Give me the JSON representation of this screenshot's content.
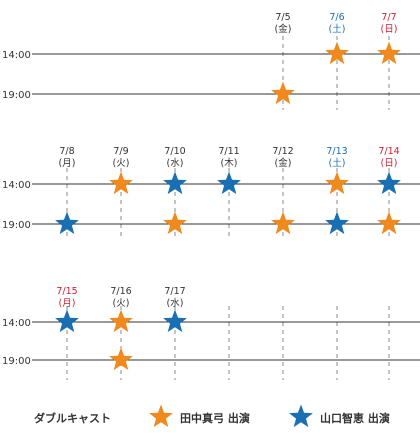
{
  "colors": {
    "orange": "#f08a1e",
    "blue": "#1a6fb3",
    "saturday": "#1a6fb3",
    "sunday": "#cc2233",
    "weekday": "#333333",
    "line": "#333333",
    "dash": "#888888"
  },
  "weeks": [
    {
      "times": [
        "14:00",
        "19:00"
      ],
      "days": [
        {
          "date": "7/5",
          "dow": "(金)",
          "type": "weekday",
          "shows": [
            "",
            "orange"
          ]
        },
        {
          "date": "7/6",
          "dow": "(土)",
          "type": "saturday",
          "shows": [
            "orange",
            ""
          ]
        },
        {
          "date": "7/7",
          "dow": "(日)",
          "type": "sunday",
          "shows": [
            "orange",
            ""
          ]
        }
      ],
      "start_col": 4
    },
    {
      "times": [
        "14:00",
        "19:00"
      ],
      "days": [
        {
          "date": "7/8",
          "dow": "(月)",
          "type": "weekday",
          "shows": [
            "",
            "blue"
          ]
        },
        {
          "date": "7/9",
          "dow": "(火)",
          "type": "weekday",
          "shows": [
            "orange",
            ""
          ]
        },
        {
          "date": "7/10",
          "dow": "(水)",
          "type": "weekday",
          "shows": [
            "blue",
            "orange"
          ]
        },
        {
          "date": "7/11",
          "dow": "(木)",
          "type": "weekday",
          "shows": [
            "blue",
            ""
          ]
        },
        {
          "date": "7/12",
          "dow": "(金)",
          "type": "weekday",
          "shows": [
            "",
            "orange"
          ]
        },
        {
          "date": "7/13",
          "dow": "(土)",
          "type": "saturday",
          "shows": [
            "orange",
            "blue"
          ]
        },
        {
          "date": "7/14",
          "dow": "(日)",
          "type": "sunday",
          "shows": [
            "blue",
            "orange"
          ]
        }
      ],
      "start_col": 0
    },
    {
      "times": [
        "14:00",
        "19:00"
      ],
      "days": [
        {
          "date": "7/15",
          "dow": "(月)",
          "type": "sunday",
          "shows": [
            "blue",
            ""
          ]
        },
        {
          "date": "7/16",
          "dow": "(火)",
          "type": "weekday",
          "shows": [
            "orange",
            "orange"
          ]
        },
        {
          "date": "7/17",
          "dow": "(水)",
          "type": "weekday",
          "shows": [
            "blue",
            ""
          ]
        },
        {
          "date": "",
          "dow": "",
          "type": "weekday",
          "shows": [
            "",
            ""
          ]
        },
        {
          "date": "",
          "dow": "",
          "type": "weekday",
          "shows": [
            "",
            ""
          ]
        },
        {
          "date": "",
          "dow": "",
          "type": "weekday",
          "shows": [
            "",
            ""
          ]
        },
        {
          "date": "",
          "dow": "",
          "type": "weekday",
          "shows": [
            "",
            ""
          ]
        }
      ],
      "start_col": 0
    }
  ],
  "legend": {
    "title": "ダブルキャスト",
    "orange_label": "田中真弓 出演",
    "blue_label": "山口智恵 出演"
  }
}
